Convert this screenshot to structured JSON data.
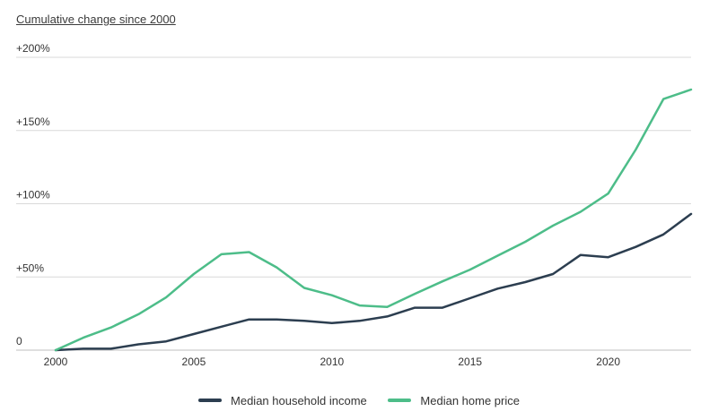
{
  "chart_data": {
    "type": "line",
    "title": "Cumulative change since 2000",
    "xlabel": "",
    "ylabel": "",
    "x": [
      2000,
      2001,
      2002,
      2003,
      2004,
      2005,
      2006,
      2007,
      2008,
      2009,
      2010,
      2011,
      2012,
      2013,
      2014,
      2015,
      2016,
      2017,
      2018,
      2019,
      2020,
      2021,
      2022,
      2023
    ],
    "xlim": [
      2000,
      2023
    ],
    "ylim": [
      0,
      200
    ],
    "x_ticks": [
      2000,
      2005,
      2010,
      2015,
      2020
    ],
    "y_ticks": [
      0,
      50,
      100,
      150,
      200
    ],
    "y_tick_labels": [
      "0",
      "+50%",
      "+100%",
      "+150%",
      "+200%"
    ],
    "grid": true,
    "legend_position": "bottom-center",
    "series": [
      {
        "name": "Median household income",
        "color": "#2c3e50",
        "values": [
          0,
          1,
          1,
          4,
          6,
          11,
          16,
          21,
          21,
          20,
          18.5,
          20,
          23,
          29,
          29,
          35.5,
          42,
          46.5,
          52,
          65,
          63.5,
          70.5,
          79,
          93
        ]
      },
      {
        "name": "Median home price",
        "color": "#4dbd89",
        "values": [
          0,
          8.5,
          15.5,
          24.5,
          36,
          52,
          65.5,
          67,
          56.5,
          42.5,
          37.5,
          30.5,
          29.5,
          38.5,
          47,
          55,
          64.5,
          74,
          85,
          94.5,
          107,
          137,
          171.5,
          178
        ]
      }
    ]
  }
}
